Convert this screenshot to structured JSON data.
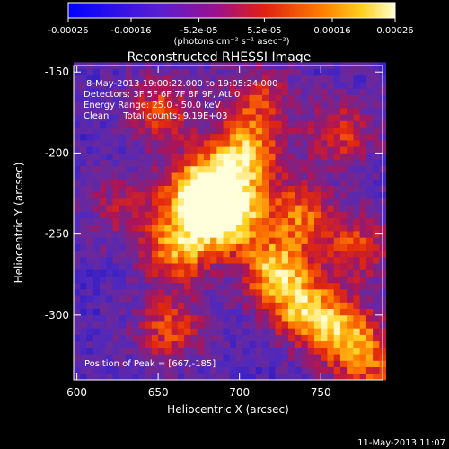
{
  "chart_data": {
    "type": "heatmap",
    "title": "Reconstructed RHESSI Image",
    "colorbar": {
      "ticks": [
        "-0.00026",
        "-0.00016",
        "-5.2e-05",
        "5.2e-05",
        "0.00016",
        "0.00026"
      ],
      "tick_values": [
        -0.00026,
        -0.00016,
        -5.2e-05,
        5.2e-05,
        0.00016,
        0.00026
      ],
      "units_label": "(photons cm⁻² s⁻¹ asec⁻²)",
      "range": [
        -0.00026,
        0.00026
      ]
    },
    "xlabel": "Heliocentric X (arcsec)",
    "ylabel": "Heliocentric Y (arcsec)",
    "xlim": [
      598,
      788
    ],
    "ylim": [
      -340,
      -146
    ],
    "xticks": [
      600,
      650,
      700,
      750
    ],
    "yticks": [
      -150,
      -200,
      -250,
      -300
    ],
    "annotations": [
      "8-May-2013 19:00:22.000 to 19:05:24.000",
      "Detectors: 3F 5F 6F 7F 8F 9F, Att 0",
      "Energy Range: 25.0 - 50.0 keV",
      "Clean     Total counts: 9.19E+03"
    ],
    "peak_label": "Position of Peak = [667,-185]",
    "peak": [
      667,
      -185
    ],
    "sources": [
      {
        "x": 690,
        "y": -240,
        "intensity": 1.0
      },
      {
        "x": 672,
        "y": -225,
        "intensity": 0.85
      },
      {
        "x": 700,
        "y": -205,
        "intensity": 0.8
      },
      {
        "x": 660,
        "y": -260,
        "intensity": 0.7
      },
      {
        "x": 720,
        "y": -275,
        "intensity": 0.75
      },
      {
        "x": 740,
        "y": -300,
        "intensity": 0.72
      },
      {
        "x": 765,
        "y": -315,
        "intensity": 0.6
      },
      {
        "x": 650,
        "y": -175,
        "intensity": 0.5
      },
      {
        "x": 735,
        "y": -240,
        "intensity": 0.55
      },
      {
        "x": 655,
        "y": -310,
        "intensity": 0.5
      },
      {
        "x": 710,
        "y": -170,
        "intensity": 0.45
      },
      {
        "x": 760,
        "y": -190,
        "intensity": 0.45
      },
      {
        "x": 770,
        "y": -260,
        "intensity": 0.45
      },
      {
        "x": 780,
        "y": -335,
        "intensity": 0.4
      },
      {
        "x": 625,
        "y": -235,
        "intensity": 0.3
      }
    ]
  },
  "footer_timestamp": "11-May-2013 11:07"
}
